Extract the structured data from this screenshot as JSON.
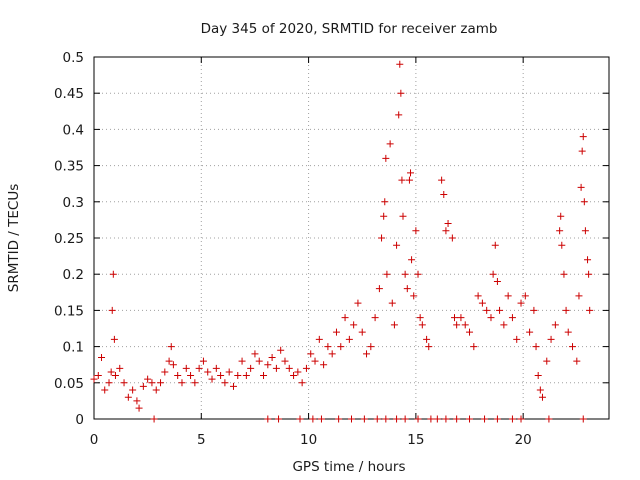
{
  "chart_data": {
    "type": "scatter",
    "title": "Day 345 of 2020, SRMTID for receiver zamb",
    "xlabel": "GPS time / hours",
    "ylabel": "SRMTID / TECUs",
    "xlim": [
      0,
      24
    ],
    "ylim": [
      0,
      0.5
    ],
    "x_ticks": [
      0,
      5,
      10,
      15,
      20
    ],
    "x_tick_labels": [
      "0",
      "5",
      "10",
      "15",
      "20"
    ],
    "y_ticks": [
      0,
      0.05,
      0.1,
      0.15,
      0.2,
      0.25,
      0.3,
      0.35,
      0.4,
      0.45,
      0.5
    ],
    "y_tick_labels": [
      "0",
      "0.05",
      "0.1",
      "0.15",
      "0.2",
      "0.25",
      "0.3",
      "0.35",
      "0.4",
      "0.45",
      "0.5"
    ],
    "grid": true,
    "marker": "+",
    "marker_color": "#cc0000",
    "series": [
      {
        "name": "SRMTID",
        "points": [
          [
            0.0,
            0.055
          ],
          [
            0.2,
            0.06
          ],
          [
            0.35,
            0.085
          ],
          [
            0.5,
            0.04
          ],
          [
            0.7,
            0.05
          ],
          [
            0.8,
            0.065
          ],
          [
            0.85,
            0.15
          ],
          [
            0.9,
            0.2
          ],
          [
            0.95,
            0.11
          ],
          [
            1.0,
            0.06
          ],
          [
            1.2,
            0.07
          ],
          [
            1.4,
            0.05
          ],
          [
            1.6,
            0.03
          ],
          [
            1.8,
            0.04
          ],
          [
            2.0,
            0.025
          ],
          [
            2.1,
            0.015
          ],
          [
            2.3,
            0.045
          ],
          [
            2.5,
            0.055
          ],
          [
            2.7,
            0.05
          ],
          [
            2.9,
            0.04
          ],
          [
            3.1,
            0.05
          ],
          [
            3.3,
            0.065
          ],
          [
            3.5,
            0.08
          ],
          [
            3.6,
            0.1
          ],
          [
            3.7,
            0.075
          ],
          [
            3.9,
            0.06
          ],
          [
            4.1,
            0.05
          ],
          [
            4.3,
            0.07
          ],
          [
            4.5,
            0.06
          ],
          [
            4.7,
            0.05
          ],
          [
            4.9,
            0.07
          ],
          [
            5.1,
            0.08
          ],
          [
            5.3,
            0.065
          ],
          [
            5.5,
            0.055
          ],
          [
            5.7,
            0.07
          ],
          [
            5.9,
            0.06
          ],
          [
            6.1,
            0.05
          ],
          [
            6.3,
            0.065
          ],
          [
            6.5,
            0.045
          ],
          [
            6.7,
            0.06
          ],
          [
            6.9,
            0.08
          ],
          [
            7.1,
            0.06
          ],
          [
            7.3,
            0.07
          ],
          [
            7.5,
            0.09
          ],
          [
            7.7,
            0.08
          ],
          [
            7.9,
            0.06
          ],
          [
            8.1,
            0.075
          ],
          [
            8.3,
            0.085
          ],
          [
            8.5,
            0.07
          ],
          [
            8.7,
            0.095
          ],
          [
            8.9,
            0.08
          ],
          [
            9.1,
            0.07
          ],
          [
            9.3,
            0.06
          ],
          [
            9.5,
            0.065
          ],
          [
            9.7,
            0.05
          ],
          [
            9.9,
            0.07
          ],
          [
            10.1,
            0.09
          ],
          [
            10.3,
            0.08
          ],
          [
            10.5,
            0.11
          ],
          [
            10.7,
            0.075
          ],
          [
            10.9,
            0.1
          ],
          [
            11.1,
            0.09
          ],
          [
            11.3,
            0.12
          ],
          [
            11.5,
            0.1
          ],
          [
            11.7,
            0.14
          ],
          [
            11.9,
            0.11
          ],
          [
            12.1,
            0.13
          ],
          [
            12.3,
            0.16
          ],
          [
            12.5,
            0.12
          ],
          [
            12.7,
            0.09
          ],
          [
            12.9,
            0.1
          ],
          [
            13.1,
            0.14
          ],
          [
            13.3,
            0.18
          ],
          [
            13.4,
            0.25
          ],
          [
            13.5,
            0.28
          ],
          [
            13.55,
            0.3
          ],
          [
            13.6,
            0.36
          ],
          [
            13.65,
            0.2
          ],
          [
            13.8,
            0.38
          ],
          [
            13.9,
            0.16
          ],
          [
            14.0,
            0.13
          ],
          [
            14.1,
            0.24
          ],
          [
            14.2,
            0.42
          ],
          [
            14.25,
            0.49
          ],
          [
            14.3,
            0.45
          ],
          [
            14.35,
            0.33
          ],
          [
            14.4,
            0.28
          ],
          [
            14.5,
            0.2
          ],
          [
            14.6,
            0.18
          ],
          [
            14.7,
            0.33
          ],
          [
            14.75,
            0.34
          ],
          [
            14.8,
            0.22
          ],
          [
            14.9,
            0.17
          ],
          [
            15.0,
            0.26
          ],
          [
            15.1,
            0.2
          ],
          [
            15.2,
            0.14
          ],
          [
            15.3,
            0.13
          ],
          [
            15.5,
            0.11
          ],
          [
            15.6,
            0.1
          ],
          [
            16.2,
            0.33
          ],
          [
            16.3,
            0.31
          ],
          [
            16.4,
            0.26
          ],
          [
            16.5,
            0.27
          ],
          [
            16.7,
            0.25
          ],
          [
            16.8,
            0.14
          ],
          [
            16.9,
            0.13
          ],
          [
            17.1,
            0.14
          ],
          [
            17.3,
            0.13
          ],
          [
            17.5,
            0.12
          ],
          [
            17.7,
            0.1
          ],
          [
            17.9,
            0.17
          ],
          [
            18.1,
            0.16
          ],
          [
            18.3,
            0.15
          ],
          [
            18.5,
            0.14
          ],
          [
            18.6,
            0.2
          ],
          [
            18.7,
            0.24
          ],
          [
            18.8,
            0.19
          ],
          [
            18.9,
            0.15
          ],
          [
            19.1,
            0.13
          ],
          [
            19.3,
            0.17
          ],
          [
            19.5,
            0.14
          ],
          [
            19.7,
            0.11
          ],
          [
            19.9,
            0.16
          ],
          [
            20.1,
            0.17
          ],
          [
            20.3,
            0.12
          ],
          [
            20.5,
            0.15
          ],
          [
            20.6,
            0.1
          ],
          [
            20.7,
            0.06
          ],
          [
            20.8,
            0.04
          ],
          [
            20.9,
            0.03
          ],
          [
            21.1,
            0.08
          ],
          [
            21.3,
            0.11
          ],
          [
            21.5,
            0.13
          ],
          [
            21.7,
            0.26
          ],
          [
            21.75,
            0.28
          ],
          [
            21.8,
            0.24
          ],
          [
            21.9,
            0.2
          ],
          [
            22.0,
            0.15
          ],
          [
            22.1,
            0.12
          ],
          [
            22.3,
            0.1
          ],
          [
            22.5,
            0.08
          ],
          [
            22.6,
            0.17
          ],
          [
            22.7,
            0.32
          ],
          [
            22.75,
            0.37
          ],
          [
            22.8,
            0.39
          ],
          [
            22.85,
            0.3
          ],
          [
            22.9,
            0.26
          ],
          [
            23.0,
            0.22
          ],
          [
            23.05,
            0.2
          ],
          [
            23.1,
            0.15
          ],
          [
            2.8,
            0.0
          ],
          [
            8.1,
            0.0
          ],
          [
            8.6,
            0.0
          ],
          [
            9.6,
            0.0
          ],
          [
            10.2,
            0.0
          ],
          [
            10.6,
            0.0
          ],
          [
            11.4,
            0.0
          ],
          [
            12.0,
            0.0
          ],
          [
            12.6,
            0.0
          ],
          [
            13.2,
            0.0
          ],
          [
            13.6,
            0.0
          ],
          [
            14.1,
            0.0
          ],
          [
            14.5,
            0.0
          ],
          [
            15.1,
            0.0
          ],
          [
            15.7,
            0.0
          ],
          [
            16.0,
            0.0
          ],
          [
            16.4,
            0.0
          ],
          [
            16.9,
            0.0
          ],
          [
            17.5,
            0.0
          ],
          [
            18.2,
            0.0
          ],
          [
            18.8,
            0.0
          ],
          [
            19.5,
            0.0
          ],
          [
            19.9,
            0.0
          ],
          [
            21.2,
            0.0
          ],
          [
            22.8,
            0.0
          ]
        ]
      }
    ]
  }
}
